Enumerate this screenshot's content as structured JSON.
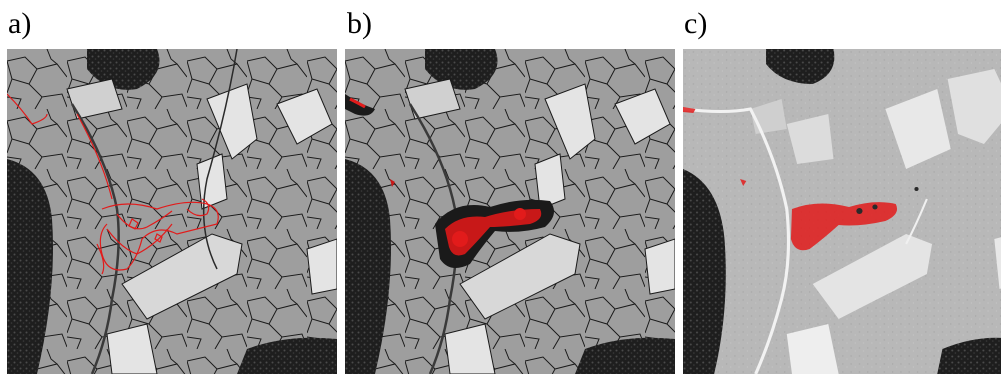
{
  "panels": [
    {
      "id": "a",
      "label": "a)"
    },
    {
      "id": "b",
      "label": "b)"
    },
    {
      "id": "c",
      "label": "c)"
    }
  ],
  "colors": {
    "segment_fill": "#9e9e9e",
    "field_light": "#e4e4e4",
    "forest_dark": "#1e1e1e",
    "boundary_line": "#1a1a1a",
    "detection_red": "#e21b1b",
    "aerial_base": "#b8b8b8"
  }
}
